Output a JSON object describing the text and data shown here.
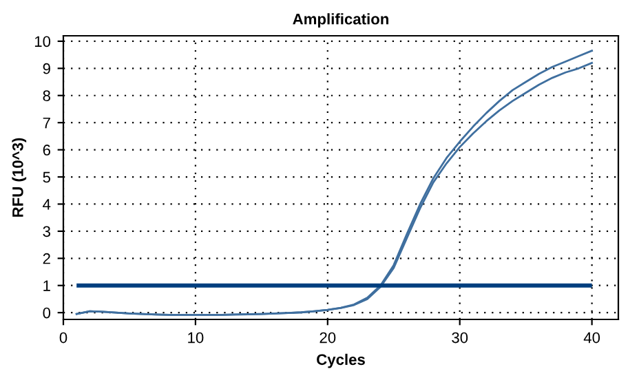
{
  "chart_data": {
    "type": "line",
    "title": "Amplification",
    "xlabel": "Cycles",
    "ylabel": "RFU (10^3)",
    "x": [
      1,
      2,
      3,
      4,
      5,
      6,
      7,
      8,
      9,
      10,
      11,
      12,
      13,
      14,
      15,
      16,
      17,
      18,
      19,
      20,
      21,
      22,
      23,
      24,
      25,
      26,
      27,
      28,
      29,
      30,
      31,
      32,
      33,
      34,
      35,
      36,
      37,
      38,
      39,
      40
    ],
    "series": [
      {
        "color": "#3f6f9f",
        "values": [
          -0.05,
          0.05,
          0.03,
          0,
          -0.03,
          -0.05,
          -0.07,
          -0.08,
          -0.08,
          -0.08,
          -0.08,
          -0.08,
          -0.07,
          -0.06,
          -0.05,
          -0.03,
          -0.01,
          0.01,
          0.05,
          0.1,
          0.18,
          0.3,
          0.55,
          1.0,
          1.75,
          2.9,
          4.0,
          4.95,
          5.7,
          6.3,
          6.85,
          7.35,
          7.8,
          8.2,
          8.5,
          8.8,
          9.05,
          9.25,
          9.45,
          9.65
        ]
      },
      {
        "color": "#3f6f9f",
        "values": [
          -0.05,
          0.05,
          0.03,
          0,
          -0.03,
          -0.05,
          -0.07,
          -0.08,
          -0.08,
          -0.08,
          -0.08,
          -0.08,
          -0.07,
          -0.06,
          -0.05,
          -0.03,
          -0.01,
          0.01,
          0.05,
          0.1,
          0.17,
          0.28,
          0.5,
          0.95,
          1.65,
          2.75,
          3.85,
          4.8,
          5.5,
          6.1,
          6.6,
          7.05,
          7.45,
          7.8,
          8.1,
          8.4,
          8.65,
          8.85,
          9.0,
          9.2
        ]
      }
    ],
    "ref_lines": [
      {
        "axis": "y",
        "value": 1,
        "color": "#003f7f"
      }
    ],
    "xlim": [
      0,
      42
    ],
    "ylim": [
      -0.25,
      10.2
    ],
    "xticks": [
      0,
      10,
      20,
      30,
      40
    ],
    "yticks": [
      0,
      1,
      2,
      3,
      4,
      5,
      6,
      7,
      8,
      9,
      10
    ],
    "grid": true,
    "marker": "none",
    "line_style": "solid"
  }
}
